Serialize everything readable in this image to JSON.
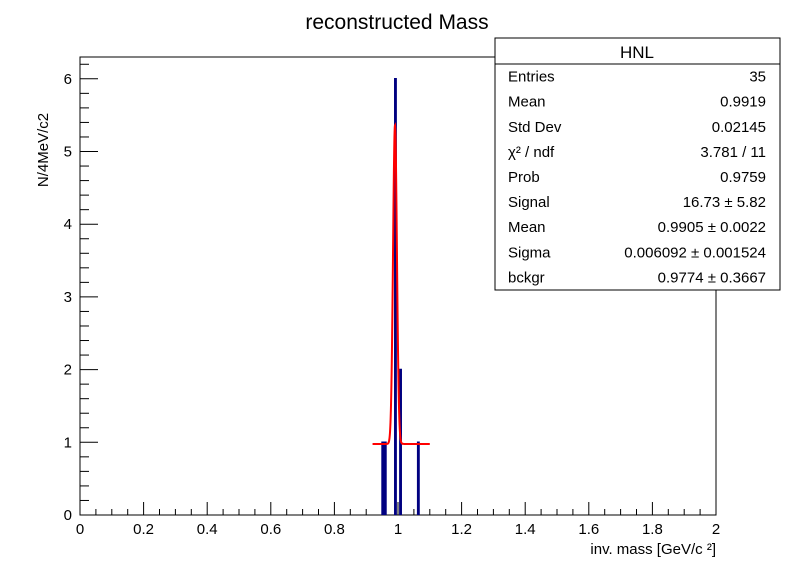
{
  "chart_data": {
    "type": "histogram",
    "title": "reconstructed Mass",
    "xlabel": "inv. mass  [GeV/c ²]",
    "ylabel": "N/4MeV/c2",
    "xlim": [
      0,
      2
    ],
    "ylim": [
      0,
      6.3
    ],
    "x_ticks": [
      "0",
      "0.2",
      "0.4",
      "0.6",
      "0.8",
      "1",
      "1.2",
      "1.4",
      "1.6",
      "1.8",
      "2"
    ],
    "y_ticks": [
      "0",
      "1",
      "2",
      "3",
      "4",
      "5",
      "6"
    ],
    "bin_width": 0.004,
    "bins": [
      {
        "x": 0.952,
        "count": 1
      },
      {
        "x": 0.96,
        "count": 1
      },
      {
        "x": 0.992,
        "count": 6
      },
      {
        "x": 1.008,
        "count": 2
      },
      {
        "x": 1.064,
        "count": 1
      }
    ],
    "fit": {
      "type": "gaussian+constant",
      "signal": 16.73,
      "mean": 0.9905,
      "sigma": 0.006092,
      "bckgr": 0.9774,
      "range": [
        0.92,
        1.1
      ]
    },
    "colors": {
      "histogram": "#000080",
      "fit": "#ff0000"
    }
  },
  "stats_box": {
    "name": "HNL",
    "rows": [
      {
        "label": "Entries",
        "value": "35"
      },
      {
        "label": "Mean",
        "value": "0.9919"
      },
      {
        "label": "Std Dev",
        "value": "0.02145"
      },
      {
        "label": "χ² / ndf",
        "value": "3.781 / 11"
      },
      {
        "label": "Prob",
        "value": "0.9759"
      },
      {
        "label": "Signal",
        "value": "16.73 ± 5.82"
      },
      {
        "label": "Mean",
        "value": "0.9905 ± 0.0022"
      },
      {
        "label": "Sigma",
        "value": "0.006092 ± 0.001524"
      },
      {
        "label": "bckgr",
        "value": "0.9774 ± 0.3667"
      }
    ]
  }
}
